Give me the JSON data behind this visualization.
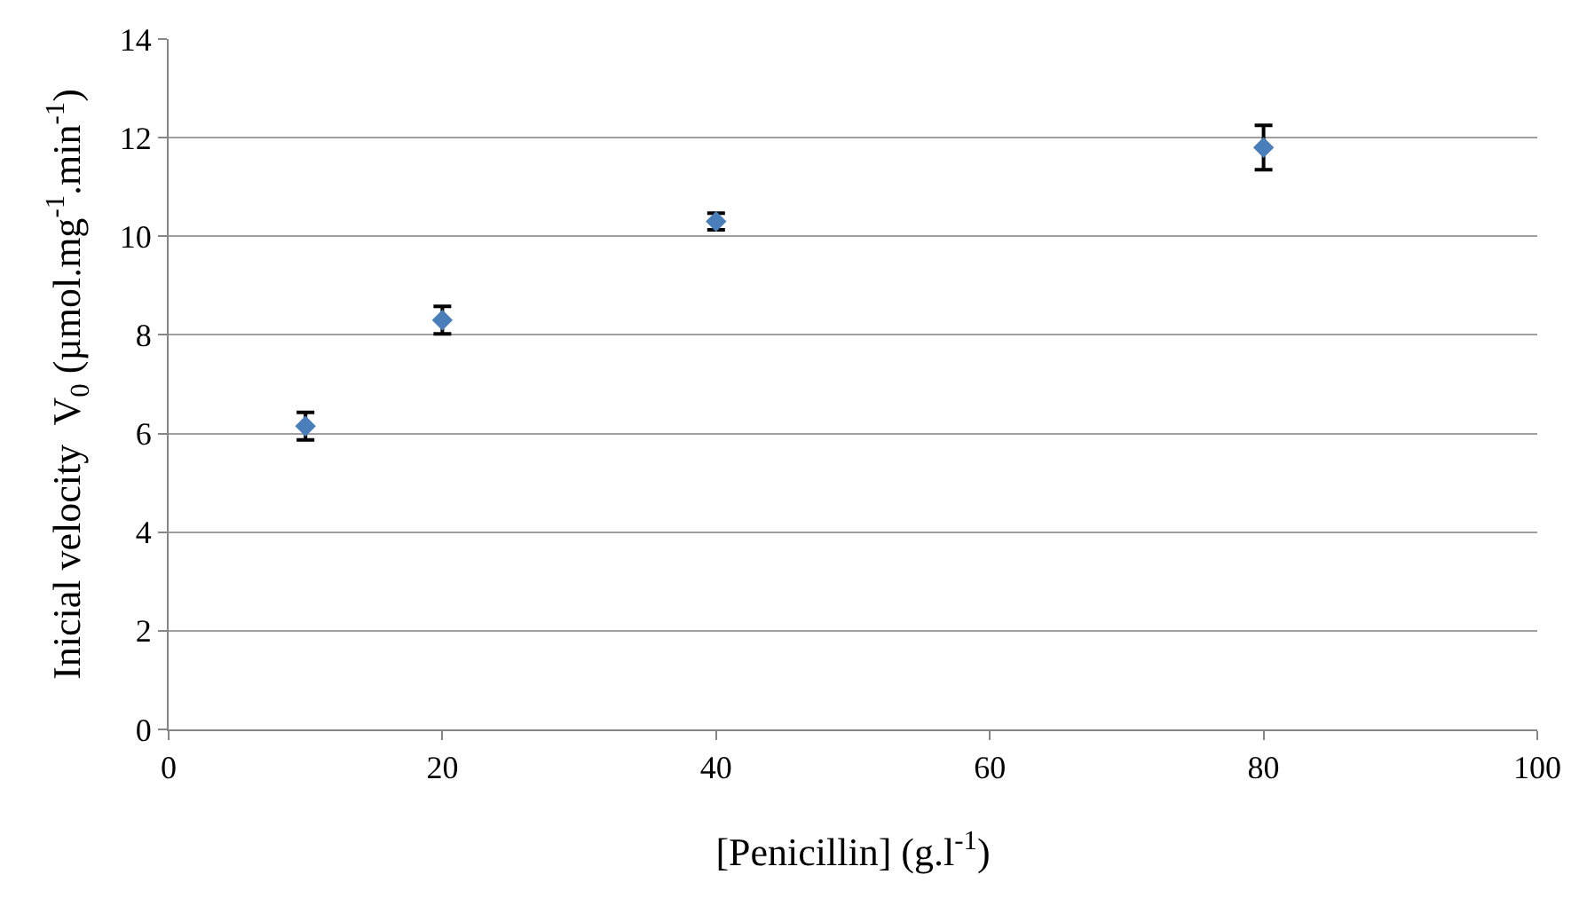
{
  "chart_data": {
    "type": "scatter",
    "xlabel": "[Penicillin] (g.l$^{-1}$)",
    "ylabel": "Inicial velocity  V$_{0}$ (µmol.mg$^{-1}$.min$^{-1}$)",
    "x": [
      10,
      20,
      40,
      80
    ],
    "values": [
      6.15,
      8.3,
      10.3,
      11.8
    ],
    "errors": [
      0.28,
      0.28,
      0.17,
      0.45
    ],
    "color": "#4a7ebb",
    "marker": "diamond",
    "xlim": [
      0,
      100
    ],
    "xticks": [
      0,
      20,
      40,
      60,
      80,
      100
    ],
    "ylim": [
      0,
      14
    ],
    "yticks": [
      0,
      2,
      4,
      6,
      8,
      10,
      12,
      14
    ],
    "grid": "y",
    "legend": false
  }
}
